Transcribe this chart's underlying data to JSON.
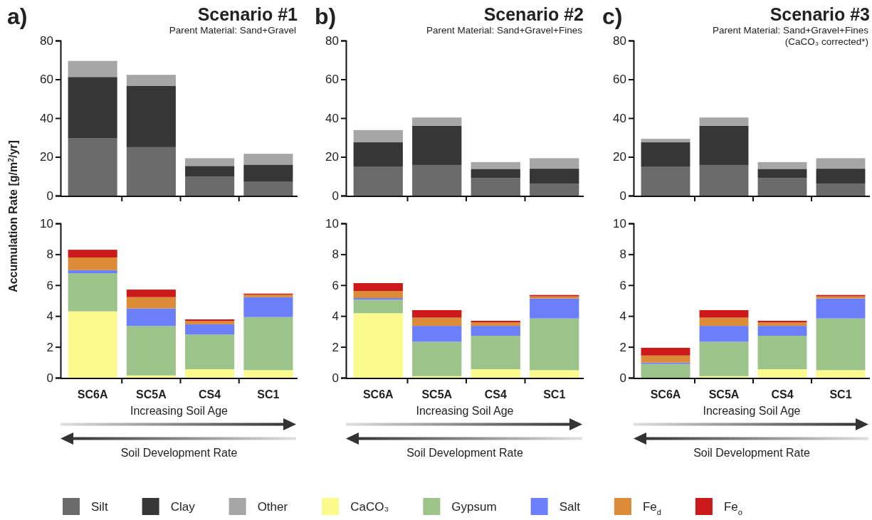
{
  "chart_data": [
    {
      "type": "bar",
      "title": "Scenario #1",
      "subtitle": "Parent Material: Sand+Gravel",
      "ylabel": "Accumulation Rate [g/m$^{2}$/yr]",
      "annotations": [
        "a)"
      ],
      "categories": [
        null,
        null,
        null,
        null
      ],
      "stacked": true,
      "ylim": [
        0,
        80
      ],
      "yticks": [
        0,
        20,
        40,
        60,
        80
      ],
      "tick_labels": "y",
      "legend": "bottom",
      "series": [
        {
          "name": "Silt",
          "color": "#6b6b6b",
          "values": [
            29.5,
            25,
            9.7,
            7.1
          ]
        },
        {
          "name": "Clay",
          "color": "#363636",
          "values": [
            31.7,
            31.7,
            5.6,
            8.9
          ]
        },
        {
          "name": "Other",
          "color": "#a6a6a6",
          "values": [
            8.3,
            5.6,
            4,
            5.6
          ]
        }
      ]
    },
    {
      "type": "bar",
      "title": "Scenario #2",
      "subtitle": "Parent Material: Sand+Gravel+Fines",
      "annotations": [
        "b)"
      ],
      "categories": [
        null,
        null,
        null,
        null
      ],
      "stacked": true,
      "ylim": [
        0,
        80
      ],
      "yticks": [
        0,
        20,
        40,
        60,
        80
      ],
      "tick_labels": "y",
      "series": [
        {
          "color": "#6b6b6b",
          "values": [
            14.8,
            15.8,
            9,
            6.2
          ]
        },
        {
          "color": "#363636",
          "values": [
            12.7,
            20.2,
            4.8,
            7.7
          ]
        },
        {
          "color": "#a6a6a6",
          "values": [
            6.3,
            4.3,
            3.5,
            5.4
          ]
        }
      ]
    },
    {
      "type": "bar",
      "title": "Scenario #3",
      "subtitle": "Parent Material: Sand+Gravel+Fines\n(CaCO₃ corrected*)",
      "annotations": [
        "c)"
      ],
      "categories": [
        null,
        null,
        null,
        null
      ],
      "stacked": true,
      "ylim": [
        0,
        80
      ],
      "yticks": [
        0,
        20,
        40,
        60,
        80
      ],
      "tick_labels": "y",
      "series": [
        {
          "color": "#6b6b6b",
          "values": [
            14.8,
            15.8,
            9,
            6.2
          ]
        },
        {
          "color": "#363636",
          "values": [
            12.7,
            20.2,
            4.8,
            7.7
          ]
        },
        {
          "color": "#a6a6a6",
          "values": [
            1.8,
            4.3,
            3.5,
            5.4
          ]
        }
      ]
    },
    {
      "type": "bar",
      "annotations": [
        "Increasing Soil Age",
        "Soil Development Rate"
      ],
      "categories": [
        "SC6A",
        "SC5A",
        "CS4",
        "SC1"
      ],
      "stacked": true,
      "ylim": [
        0,
        10
      ],
      "yticks": [
        0,
        2,
        4,
        6,
        8,
        10
      ],
      "legend": "bottom",
      "series": [
        {
          "name": "CaCO₃",
          "color": "#fbfb8d",
          "values": [
            4.3,
            0.15,
            0.55,
            0.49
          ]
        },
        {
          "name": "Gypsum",
          "color": "#9cc38a",
          "values": [
            2.47,
            3.2,
            2.25,
            3.44
          ]
        },
        {
          "name": "Salt",
          "color": "#6b7ffa",
          "values": [
            0.2,
            1.14,
            0.66,
            1.29
          ]
        },
        {
          "name": "Fe$_{d}$",
          "color": "#dc8b36",
          "values": [
            0.82,
            0.73,
            0.21,
            0.16
          ]
        },
        {
          "name": "Fe$_{o}$",
          "color": "#cc1a1a",
          "values": [
            0.5,
            0.49,
            0.11,
            0.07
          ]
        }
      ]
    },
    {
      "type": "bar",
      "annotations": [
        "Increasing Soil Age",
        "Soil Development Rate"
      ],
      "categories": [
        "SC6A",
        "SC5A",
        "CS4",
        "SC1"
      ],
      "stacked": true,
      "ylim": [
        0,
        10
      ],
      "yticks": [
        0,
        2,
        4,
        6,
        8,
        10
      ],
      "series": [
        {
          "color": "#fbfb8d",
          "values": [
            4.18,
            0.1,
            0.55,
            0.49
          ]
        },
        {
          "color": "#9cc38a",
          "values": [
            0.87,
            2.23,
            2.17,
            3.35
          ]
        },
        {
          "color": "#6b7ffa",
          "values": [
            0.11,
            1.03,
            0.64,
            1.29
          ]
        },
        {
          "color": "#dc8b36",
          "values": [
            0.46,
            0.53,
            0.22,
            0.14
          ]
        },
        {
          "color": "#cc1a1a",
          "values": [
            0.51,
            0.49,
            0.11,
            0.09
          ]
        }
      ]
    },
    {
      "type": "bar",
      "annotations": [
        "Increasing Soil Age",
        "Soil Development Rate"
      ],
      "categories": [
        "SC6A",
        "SC5A",
        "CS4",
        "SC1"
      ],
      "stacked": true,
      "ylim": [
        0,
        10
      ],
      "yticks": [
        0,
        2,
        4,
        6,
        8,
        10
      ],
      "series": [
        {
          "color": "#fbfb8d",
          "values": [
            0,
            0.1,
            0.55,
            0.49
          ]
        },
        {
          "color": "#9cc38a",
          "values": [
            0.89,
            2.23,
            2.17,
            3.35
          ]
        },
        {
          "color": "#6b7ffa",
          "values": [
            0.09,
            1.03,
            0.64,
            1.29
          ]
        },
        {
          "color": "#dc8b36",
          "values": [
            0.46,
            0.53,
            0.22,
            0.14
          ]
        },
        {
          "color": "#cc1a1a",
          "values": [
            0.5,
            0.49,
            0.11,
            0.09
          ]
        }
      ]
    }
  ]
}
